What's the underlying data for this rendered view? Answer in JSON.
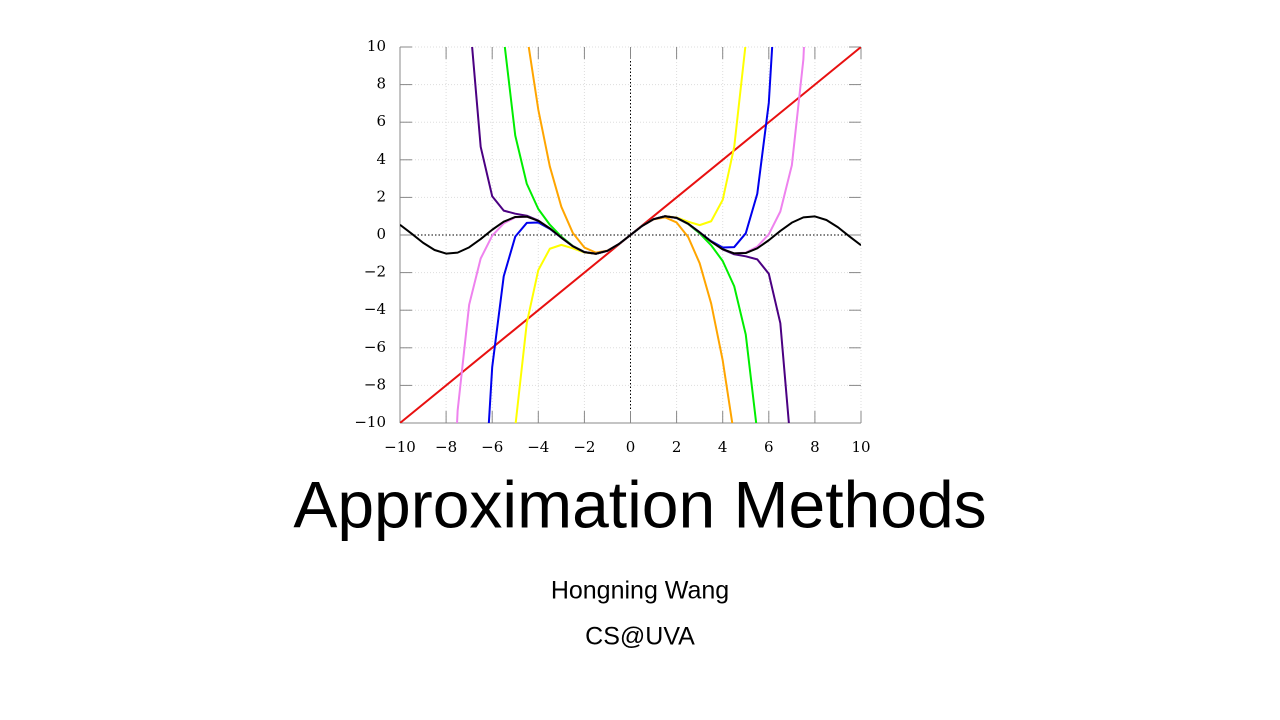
{
  "chart_data": {
    "type": "line",
    "xlim": [
      -10,
      10
    ],
    "ylim": [
      -10,
      10
    ],
    "xticks": [
      {
        "value": -10,
        "label": "−10"
      },
      {
        "value": -8,
        "label": "−8"
      },
      {
        "value": -6,
        "label": "−6"
      },
      {
        "value": -4,
        "label": "−4"
      },
      {
        "value": -2,
        "label": "−2"
      },
      0,
      2,
      4,
      6,
      8,
      10
    ],
    "yticks": [
      {
        "value": -10,
        "label": "−10"
      },
      {
        "value": -8,
        "label": "−8"
      },
      {
        "value": -6,
        "label": "−6"
      },
      {
        "value": -4,
        "label": "−4"
      },
      {
        "value": -2,
        "label": "−2"
      },
      0,
      2,
      4,
      6,
      8,
      10
    ],
    "grid": true,
    "series": [
      {
        "color": "#e81010",
        "x": [
          -10,
          10
        ],
        "values": [
          -10,
          10
        ]
      },
      {
        "color": "#ffa500",
        "x": [
          -4.5,
          -4,
          -3.5,
          -3,
          -2.5,
          -2,
          -1.5,
          -1,
          -0.5,
          0,
          0.5,
          1,
          1.5,
          2,
          2.5,
          3,
          3.5,
          4,
          4.5
        ],
        "values": [
          10.688,
          6.667,
          3.646,
          1.5,
          0.104,
          -0.667,
          -0.938,
          -0.833,
          -0.479,
          0,
          0.479,
          0.833,
          0.938,
          0.667,
          -0.104,
          -1.5,
          -3.646,
          -6.667,
          -10.688
        ]
      },
      {
        "color": "#ffff00",
        "x": [
          -5,
          -4.5,
          -4,
          -3.5,
          -3,
          -2.5,
          -2,
          -1.5,
          -1,
          -0.5,
          0,
          0.5,
          1,
          1.5,
          2,
          2.5,
          3,
          3.5,
          4,
          4.5,
          5
        ],
        "values": [
          -10.208,
          -4.689,
          -1.867,
          -0.731,
          -0.525,
          -0.71,
          -0.933,
          -1.001,
          -0.842,
          -0.479,
          0,
          0.479,
          0.842,
          1.001,
          0.933,
          0.71,
          0.525,
          0.731,
          1.867,
          4.689,
          10.208
        ]
      },
      {
        "color": "#00ee00",
        "x": [
          -5.5,
          -5,
          -4.5,
          -4,
          -3.5,
          -3,
          -2.5,
          -2,
          -1.5,
          -1,
          -0.5,
          0,
          0.5,
          1,
          1.5,
          2,
          2.5,
          3,
          3.5,
          4,
          4.5,
          5,
          5.5
        ],
        "values": [
          10.496,
          5.293,
          2.727,
          1.384,
          0.546,
          -0.091,
          -0.589,
          -0.908,
          -0.997,
          -0.841,
          -0.479,
          0,
          0.479,
          0.841,
          0.997,
          0.908,
          0.589,
          0.091,
          -0.546,
          -1.384,
          -2.727,
          -5.293,
          -10.496
        ]
      },
      {
        "color": "#0000ee",
        "x": [
          -6.5,
          -6,
          -5.5,
          -5,
          -4.5,
          -4,
          -3.5,
          -3,
          -2.5,
          -2,
          -1.5,
          -1,
          -0.5,
          0,
          0.5,
          1,
          1.5,
          2,
          2.5,
          3,
          3.5,
          4,
          4.5,
          5,
          5.5,
          6,
          6.5
        ],
        "values": [
          -17.23,
          -7.028,
          -2.195,
          -0.089,
          0.642,
          0.662,
          0.329,
          -0.145,
          -0.6,
          -0.909,
          -0.997,
          -0.841,
          -0.479,
          0,
          0.479,
          0.841,
          0.997,
          0.909,
          0.6,
          0.145,
          -0.329,
          -0.662,
          -0.642,
          0.089,
          2.195,
          7.028,
          17.23
        ]
      },
      {
        "color": "#4b0082",
        "x": [
          -7,
          -6.5,
          -6,
          -5.5,
          -5,
          -4.5,
          -4,
          -3.5,
          -3,
          -2.5,
          -2,
          -1.5,
          -1,
          -0.5,
          0,
          0.5,
          1,
          1.5,
          2,
          2.5,
          3,
          3.5,
          4,
          4.5,
          5,
          5.5,
          6,
          6.5,
          7
        ],
        "values": [
          11.85,
          4.69,
          2.061,
          1.295,
          1.134,
          1.026,
          0.767,
          0.353,
          -0.141,
          -0.598,
          -0.909,
          -0.997,
          -0.841,
          -0.479,
          0,
          0.479,
          0.841,
          0.997,
          0.909,
          0.598,
          0.141,
          -0.353,
          -0.767,
          -1.026,
          -1.134,
          -1.295,
          -2.061,
          -4.69,
          -11.85
        ]
      },
      {
        "color": "#ee82ee",
        "x": [
          -8,
          -7.5,
          -7,
          -6.5,
          -6,
          -5.5,
          -5,
          -4.5,
          -4,
          -3.5,
          -3,
          -2.5,
          -2,
          -1.5,
          -1,
          -0.5,
          0,
          0.5,
          1,
          1.5,
          2,
          2.5,
          3,
          3.5,
          4,
          4.5,
          5,
          5.5,
          6,
          6.5,
          7,
          7.5,
          8
        ],
        "values": [
          -22.59,
          -9.34,
          -3.71,
          -1.25,
          -0.036,
          0.618,
          0.938,
          0.976,
          0.756,
          0.351,
          -0.141,
          -0.598,
          -0.909,
          -0.997,
          -0.841,
          -0.479,
          0,
          0.479,
          0.841,
          0.997,
          0.909,
          0.598,
          0.141,
          -0.351,
          -0.756,
          -0.976,
          -0.938,
          -0.618,
          0.036,
          1.25,
          3.71,
          9.34,
          22.59
        ]
      },
      {
        "color": "#000000",
        "x": [
          -10,
          -9.5,
          -9,
          -8.5,
          -8,
          -7.5,
          -7,
          -6.5,
          -6,
          -5.5,
          -5,
          -4.5,
          -4,
          -3.5,
          -3,
          -2.5,
          -2,
          -1.5,
          -1,
          -0.5,
          0,
          0.5,
          1,
          1.5,
          2,
          2.5,
          3,
          3.5,
          4,
          4.5,
          5,
          5.5,
          6,
          6.5,
          7,
          7.5,
          8,
          8.5,
          9,
          9.5,
          10
        ],
        "values": [
          0.544,
          0.075,
          -0.412,
          -0.798,
          -0.989,
          -0.938,
          -0.657,
          -0.215,
          0.279,
          0.706,
          0.959,
          0.978,
          0.757,
          0.351,
          -0.141,
          -0.598,
          -0.909,
          -0.997,
          -0.841,
          -0.479,
          0,
          0.479,
          0.841,
          0.997,
          0.909,
          0.598,
          0.141,
          -0.351,
          -0.757,
          -0.978,
          -0.959,
          -0.706,
          -0.279,
          0.215,
          0.657,
          0.938,
          0.989,
          0.798,
          0.412,
          -0.075,
          -0.544
        ]
      }
    ]
  },
  "slide": {
    "title": "Approximation Methods",
    "author": "Hongning Wang",
    "affiliation": "CS@UVA"
  }
}
